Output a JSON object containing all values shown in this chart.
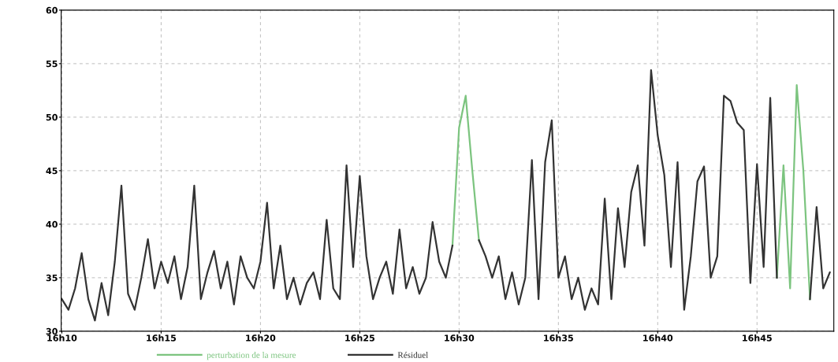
{
  "chart_data": {
    "type": "line",
    "categories": [
      "16h10",
      null,
      null,
      null,
      null,
      null,
      null,
      null,
      null,
      null,
      null,
      null,
      null,
      null,
      null,
      "16h15",
      null,
      null,
      null,
      null,
      null,
      null,
      null,
      null,
      null,
      null,
      null,
      null,
      null,
      null,
      "16h20",
      null,
      null,
      null,
      null,
      null,
      null,
      null,
      null,
      null,
      null,
      null,
      null,
      null,
      null,
      "16h25",
      null,
      null,
      null,
      null,
      null,
      null,
      null,
      null,
      null,
      null,
      null,
      null,
      null,
      null,
      "16h30",
      null,
      null,
      null,
      null,
      null,
      null,
      null,
      null,
      null,
      null,
      null,
      null,
      null,
      null,
      "16h35",
      null,
      null,
      null,
      null,
      null,
      null,
      null,
      null,
      null,
      null,
      null,
      null,
      null,
      null,
      "16h40",
      null,
      null,
      null,
      null,
      null,
      null,
      null,
      null,
      null,
      null,
      null,
      null,
      null,
      null,
      "16h45",
      null,
      null,
      null,
      null,
      null,
      null,
      null,
      null,
      null,
      null,
      null
    ],
    "ylim": [
      30,
      60
    ],
    "yticks": [
      30,
      35,
      40,
      45,
      50,
      55,
      60
    ],
    "grid": true,
    "legend": "bottom",
    "line_style": "solid",
    "series": [
      {
        "name": "perturbation de la mesure",
        "color": "#7cc47f",
        "values": [
          null,
          null,
          null,
          null,
          null,
          null,
          null,
          null,
          null,
          null,
          null,
          null,
          null,
          null,
          null,
          null,
          null,
          null,
          null,
          null,
          null,
          null,
          null,
          null,
          null,
          null,
          null,
          null,
          null,
          null,
          null,
          null,
          null,
          null,
          null,
          null,
          null,
          null,
          null,
          null,
          null,
          null,
          null,
          null,
          null,
          null,
          null,
          null,
          null,
          null,
          null,
          null,
          null,
          null,
          null,
          null,
          null,
          null,
          null,
          38,
          49,
          52,
          45,
          38.5,
          null,
          null,
          null,
          null,
          null,
          null,
          null,
          null,
          null,
          null,
          null,
          null,
          null,
          null,
          null,
          null,
          null,
          null,
          null,
          null,
          null,
          null,
          null,
          null,
          null,
          null,
          null,
          null,
          null,
          null,
          null,
          null,
          null,
          null,
          null,
          null,
          null,
          null,
          null,
          null,
          null,
          null,
          null,
          null,
          35,
          45.5,
          34,
          53,
          45,
          33,
          null,
          null,
          null
        ]
      },
      {
        "name": "Résiduel",
        "color": "#333333",
        "values": [
          33,
          32,
          34,
          37.3,
          33,
          31,
          34.5,
          31.5,
          36.5,
          43.6,
          33.5,
          32,
          35,
          38.6,
          34,
          36.5,
          34.5,
          37,
          33,
          36,
          43.6,
          33,
          35.5,
          37.5,
          34,
          36.5,
          32.5,
          37,
          35,
          34,
          36.5,
          42,
          34,
          38,
          33,
          35,
          32.5,
          34.5,
          35.5,
          33,
          40.4,
          34,
          33,
          45.5,
          36,
          44.5,
          37,
          33,
          35,
          36.5,
          33.5,
          39.5,
          34,
          36,
          33.5,
          35,
          40.2,
          36.5,
          35,
          38,
          null,
          null,
          null,
          38.5,
          37,
          35,
          37,
          33,
          35.5,
          32.5,
          35,
          46,
          33,
          45.8,
          49.7,
          35,
          37,
          33,
          35,
          32,
          34,
          32.5,
          42.4,
          33,
          41.5,
          36,
          43,
          45.5,
          38,
          54.4,
          48.3,
          44.6,
          36,
          45.8,
          32,
          37,
          44,
          45.4,
          35,
          37,
          52,
          51.5,
          49.5,
          48.8,
          34.5,
          45.6,
          36,
          51.8,
          35,
          null,
          null,
          null,
          null,
          33,
          41.6,
          34,
          35.5
        ]
      }
    ]
  }
}
